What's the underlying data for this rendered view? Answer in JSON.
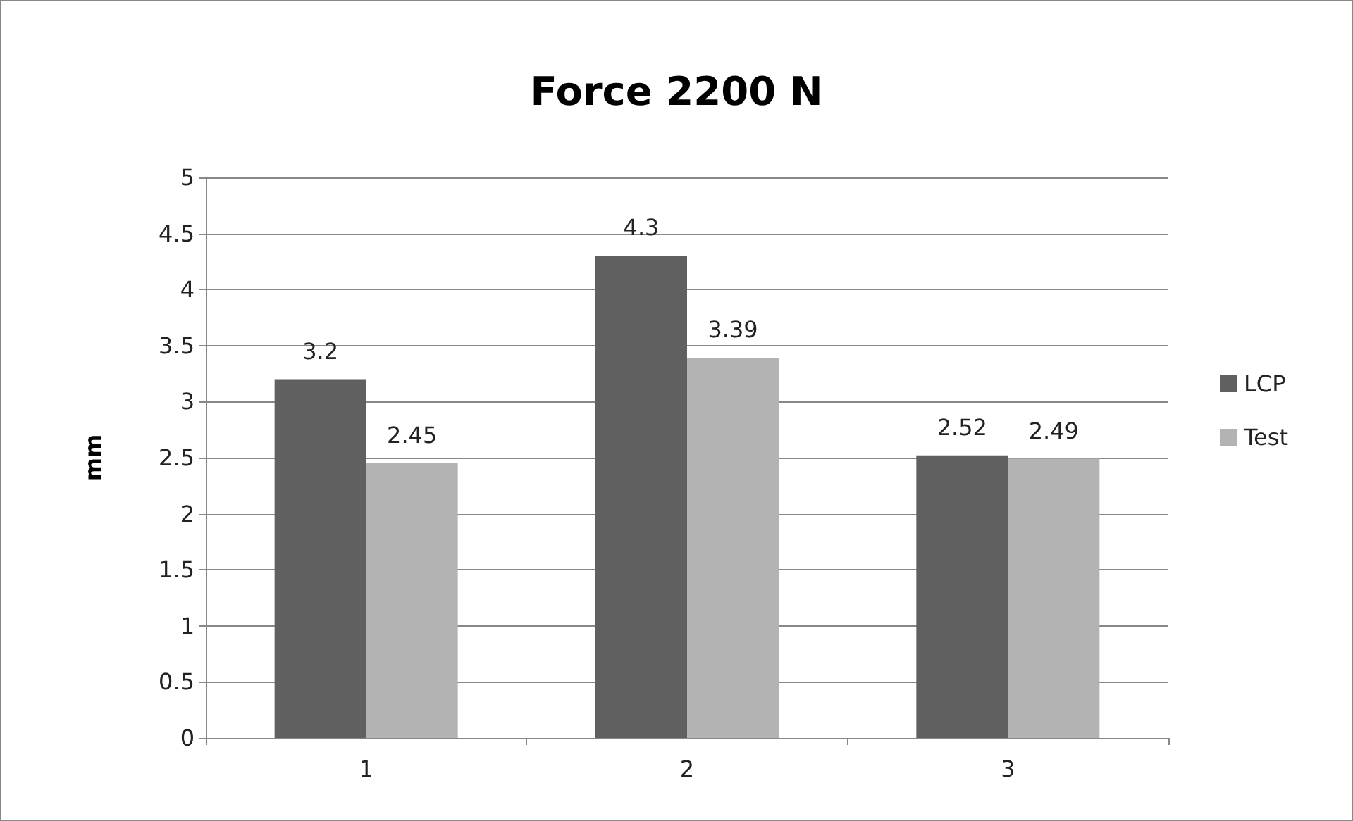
{
  "chart_data": {
    "type": "bar",
    "title": "Force 2200 N",
    "ylabel": "mm",
    "categories": [
      "1",
      "2",
      "3"
    ],
    "series": [
      {
        "name": "LCP",
        "color": "#606060",
        "values": [
          3.2,
          4.3,
          2.52
        ]
      },
      {
        "name": "Test",
        "color": "#b3b3b3",
        "values": [
          2.45,
          3.39,
          2.49
        ]
      }
    ],
    "ylim": [
      0,
      5
    ],
    "yticks": [
      0,
      0.5,
      1,
      1.5,
      2,
      2.5,
      3,
      3.5,
      4,
      4.5,
      5
    ],
    "grid": "y",
    "legend": "right",
    "data_labels": true
  }
}
